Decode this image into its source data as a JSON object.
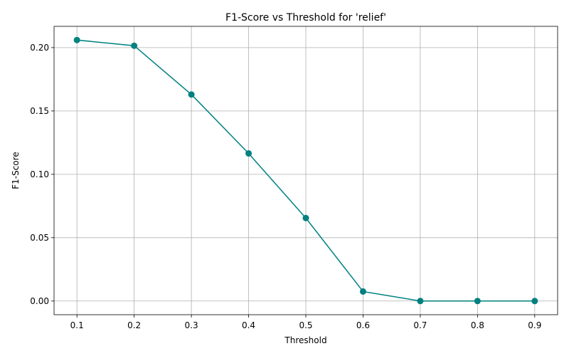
{
  "chart_data": {
    "type": "line",
    "title": "F1-Score vs Threshold for 'relief'",
    "xlabel": "Threshold",
    "ylabel": "F1-Score",
    "x": [
      0.1,
      0.2,
      0.3,
      0.4,
      0.5,
      0.6,
      0.7,
      0.8,
      0.9
    ],
    "series": [
      {
        "values": [
          0.206,
          0.2015,
          0.163,
          0.1165,
          0.0655,
          0.0075,
          0.0,
          0.0,
          0.0
        ],
        "color": "#008080",
        "marker": "circle"
      }
    ],
    "xlim": [
      0.06,
      0.94
    ],
    "ylim": [
      -0.0108,
      0.2168
    ],
    "xticks": [
      0.1,
      0.2,
      0.3,
      0.4,
      0.5,
      0.6,
      0.7,
      0.8,
      0.9
    ],
    "xtick_labels": [
      "0.1",
      "0.2",
      "0.3",
      "0.4",
      "0.5",
      "0.6",
      "0.7",
      "0.8",
      "0.9"
    ],
    "yticks": [
      0.0,
      0.05,
      0.1,
      0.15,
      0.2
    ],
    "ytick_labels": [
      "0.00",
      "0.05",
      "0.10",
      "0.15",
      "0.20"
    ],
    "grid": true
  }
}
